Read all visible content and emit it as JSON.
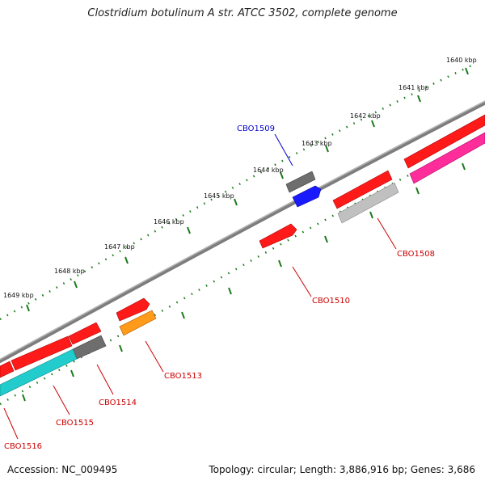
{
  "title": "Clostridium botulinum A str. ATCC 3502, complete genome",
  "accession": "Accession: NC_009495",
  "summary": "Topology: circular; Length: 3,886,916 bp; Genes: 3,686",
  "kbp_ticks": [
    "1640 kbp",
    "1641 kbp",
    "1642 kbp",
    "1643 kbp",
    "1644 kbp",
    "1645 kbp",
    "1646 kbp",
    "1647 kbp",
    "1648 kbp",
    "1649 kbp"
  ],
  "gene_labels": [
    {
      "text": "CBO1509",
      "color": "#0000cc"
    },
    {
      "text": "CBO1508",
      "color": "#cc0000"
    },
    {
      "text": "CBO1510",
      "color": "#cc0000"
    },
    {
      "text": "CBO1513",
      "color": "#cc0000"
    },
    {
      "text": "CBO1514",
      "color": "#cc0000"
    },
    {
      "text": "CBO1515",
      "color": "#cc0000"
    },
    {
      "text": "CBO1516",
      "color": "#cc0000"
    }
  ],
  "colors": {
    "backbone": "#8a8a8a",
    "cds_red": "#ff1a1a",
    "gene_grey": "#808080",
    "gene_blue": "#1a1aff",
    "gene_orange": "#ff9a1a",
    "gene_cyan": "#22cccc",
    "gene_magenta": "#ff2d9a",
    "gene_lightgrey": "#c0c0c0",
    "tick_green": "#1a7a1a"
  }
}
